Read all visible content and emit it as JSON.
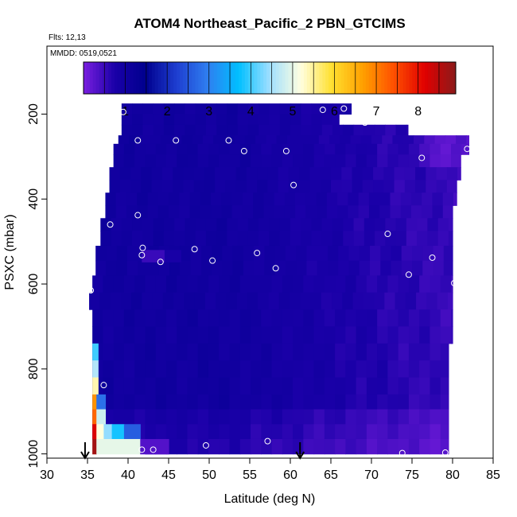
{
  "chart_data": {
    "type": "heatmap",
    "title": "ATOM4 Northeast_Pacific_2 PBN_GTCIMS",
    "subtitle_flights": "Flts: 12,13",
    "subtitle_dates": "MMDD: 0519,0521",
    "xlabel": "Latitude (deg N)",
    "ylabel": "PSXC (mbar)",
    "xlim": [
      30,
      85
    ],
    "ylim": [
      1010,
      40
    ],
    "y_reversed": true,
    "x_ticks": [
      30,
      35,
      40,
      45,
      50,
      55,
      60,
      65,
      70,
      75,
      80,
      85
    ],
    "y_ticks": [
      200,
      400,
      600,
      800,
      1000
    ],
    "colorbar": {
      "min": 0,
      "max": 8.9,
      "ticks": [
        1,
        2,
        3,
        4,
        5,
        6,
        7,
        8
      ],
      "colors": [
        "#7a1fe0",
        "#1a00a8",
        "#00008e",
        "#1e3ed0",
        "#2f7ef0",
        "#00bfff",
        "#9fdfff",
        "#ffffe0",
        "#ffe030",
        "#ffa000",
        "#ff5000",
        "#e00000",
        "#8b1a1a"
      ]
    },
    "grid": false,
    "points": [
      {
        "x": 39.4,
        "y": 195
      },
      {
        "x": 64.0,
        "y": 190
      },
      {
        "x": 66.6,
        "y": 187
      },
      {
        "x": 69.2,
        "y": 220
      },
      {
        "x": 41.2,
        "y": 262
      },
      {
        "x": 45.9,
        "y": 262
      },
      {
        "x": 52.4,
        "y": 262
      },
      {
        "x": 54.3,
        "y": 287
      },
      {
        "x": 59.5,
        "y": 287
      },
      {
        "x": 76.2,
        "y": 303
      },
      {
        "x": 81.8,
        "y": 282
      },
      {
        "x": 60.4,
        "y": 367
      },
      {
        "x": 41.2,
        "y": 438
      },
      {
        "x": 37.8,
        "y": 460
      },
      {
        "x": 41.8,
        "y": 515
      },
      {
        "x": 41.7,
        "y": 532
      },
      {
        "x": 44.0,
        "y": 548
      },
      {
        "x": 48.2,
        "y": 518
      },
      {
        "x": 50.4,
        "y": 545
      },
      {
        "x": 55.9,
        "y": 527
      },
      {
        "x": 58.2,
        "y": 563
      },
      {
        "x": 72.0,
        "y": 482
      },
      {
        "x": 77.5,
        "y": 538
      },
      {
        "x": 74.6,
        "y": 578
      },
      {
        "x": 80.2,
        "y": 598
      },
      {
        "x": 35.4,
        "y": 615
      },
      {
        "x": 37.0,
        "y": 838
      },
      {
        "x": 49.6,
        "y": 980
      },
      {
        "x": 57.2,
        "y": 970
      },
      {
        "x": 41.7,
        "y": 990
      },
      {
        "x": 43.1,
        "y": 990
      },
      {
        "x": 73.8,
        "y": 998
      },
      {
        "x": 79.1,
        "y": 997
      }
    ],
    "arrows_x": [
      34.7,
      61.2
    ]
  }
}
